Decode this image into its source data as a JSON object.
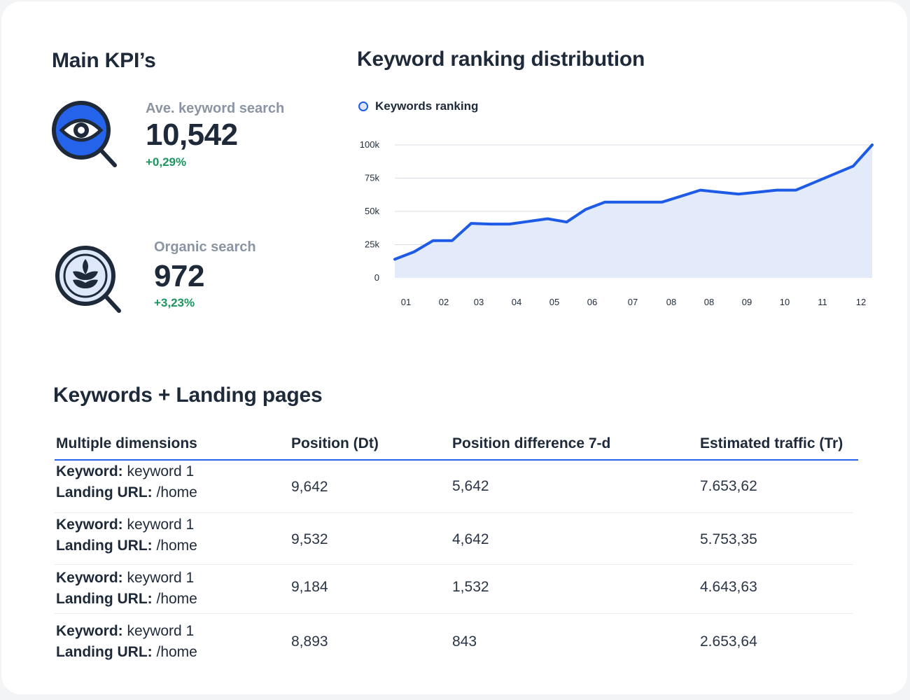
{
  "kpi": {
    "title": "Main KPI’s",
    "items": [
      {
        "label": "Ave. keyword search",
        "value": "10,542",
        "delta": "+0,29%",
        "icon": "eye-magnifier-icon"
      },
      {
        "label": "Organic search",
        "value": "972",
        "delta": "+3,23%",
        "icon": "leaf-magnifier-icon"
      }
    ]
  },
  "chart": {
    "title": "Keyword ranking distribution",
    "legend": "Keywords ranking"
  },
  "chart_data": {
    "type": "area",
    "title": "Keyword ranking distribution",
    "series": [
      {
        "name": "Keywords ranking",
        "values": [
          14000,
          19500,
          28000,
          28000,
          41000,
          40500,
          40500,
          42500,
          44500,
          42000,
          51500,
          57000,
          57000,
          57000,
          57000,
          61500,
          66000,
          64500,
          63000,
          64500,
          66000,
          66000,
          72000,
          78000,
          84000,
          100000
        ]
      }
    ],
    "x_tick_labels": [
      "01",
      "02",
      "03",
      "04",
      "05",
      "06",
      "07",
      "08",
      "08",
      "09",
      "10",
      "11",
      "12"
    ],
    "y_tick_labels": [
      "0",
      "25k",
      "50k",
      "75k",
      "100k"
    ],
    "ylim": [
      0,
      100000
    ],
    "grid": true,
    "color": "#1d5be6",
    "fill": "#e3eafa"
  },
  "table": {
    "title": "Keywords + Landing pages",
    "headers": [
      "Multiple dimensions",
      "Position (Dt)",
      "Position difference 7-d",
      "Estimated traffic (Tr)"
    ],
    "rows": [
      {
        "keyword_label": "Keyword:",
        "keyword": "keyword 1",
        "url_label": "Landing URL:",
        "url": "/home",
        "position": "9,642",
        "difference": "5,642",
        "traffic": "7.653,62"
      },
      {
        "keyword_label": "Keyword:",
        "keyword": "keyword 1",
        "url_label": "Landing URL:",
        "url": "/home",
        "position": "9,532",
        "difference": "4,642",
        "traffic": "5.753,35"
      },
      {
        "keyword_label": "Keyword:",
        "keyword": "keyword 1",
        "url_label": "Landing URL:",
        "url": "/home",
        "position": "9,184",
        "difference": "1,532",
        "traffic": "4.643,63"
      },
      {
        "keyword_label": "Keyword:",
        "keyword": "keyword 1",
        "url_label": "Landing URL:",
        "url": "/home",
        "position": "8,893",
        "difference": "843",
        "traffic": "2.653,64"
      }
    ]
  }
}
